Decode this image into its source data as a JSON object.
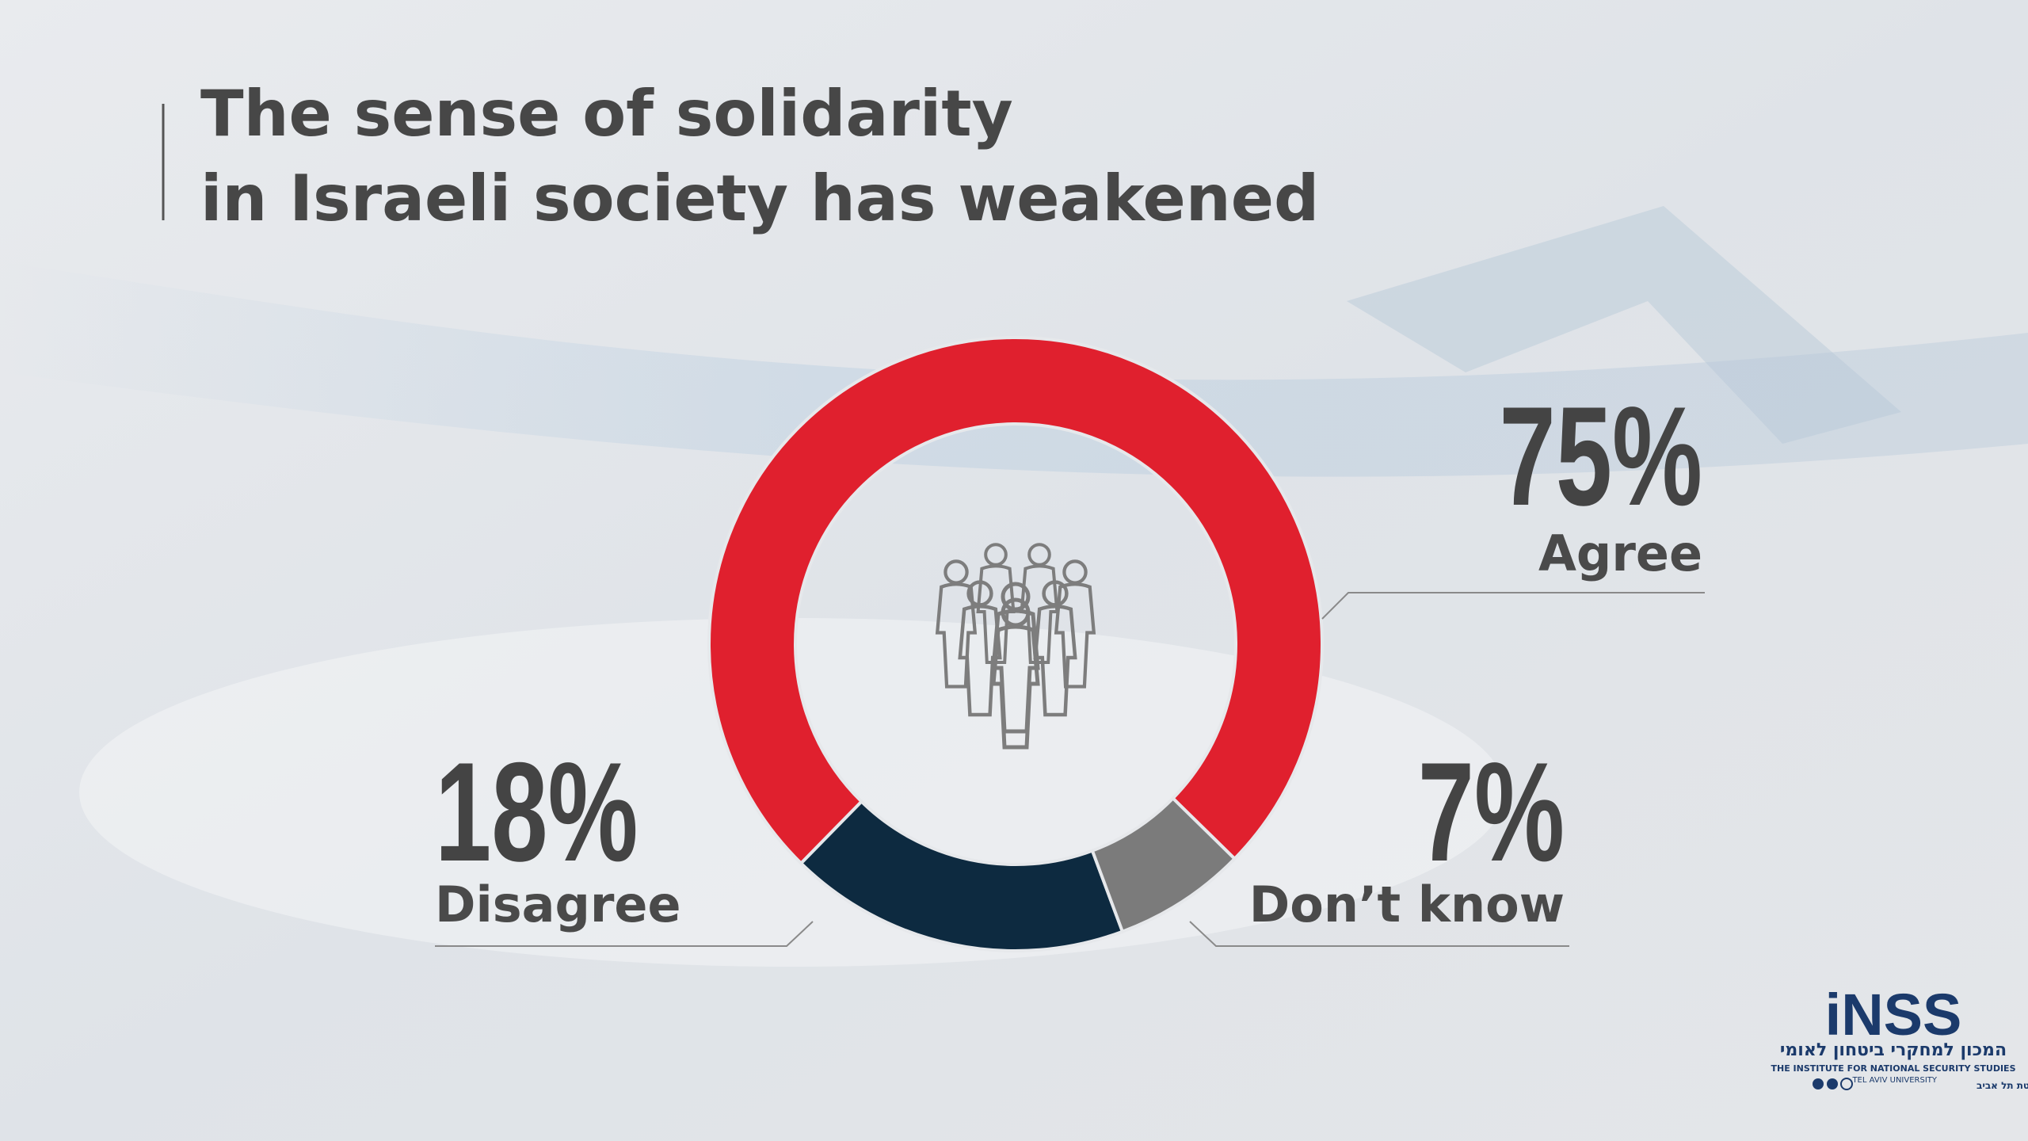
{
  "chart_data": {
    "type": "pie",
    "donut": true,
    "title": [
      "The sense of solidarity",
      "in Israeli society has weakened"
    ],
    "categories": [
      "Agree",
      "Disagree",
      "Don’t know"
    ],
    "values": [
      75,
      18,
      7
    ],
    "value_labels": [
      "75%",
      "18%",
      "7%"
    ],
    "colors": [
      "#e0202e",
      "#0d2a40",
      "#7b7b7b"
    ]
  },
  "logo": {
    "name": "iNSS",
    "hebrew": "המכון למחקרי ביטחון לאומי",
    "english": "THE INSTITUTE FOR NATIONAL SECURITY STUDIES",
    "university": "TEL AVIV UNIVERSITY",
    "university_hebrew": "אוניברסיטת תל אביב"
  }
}
